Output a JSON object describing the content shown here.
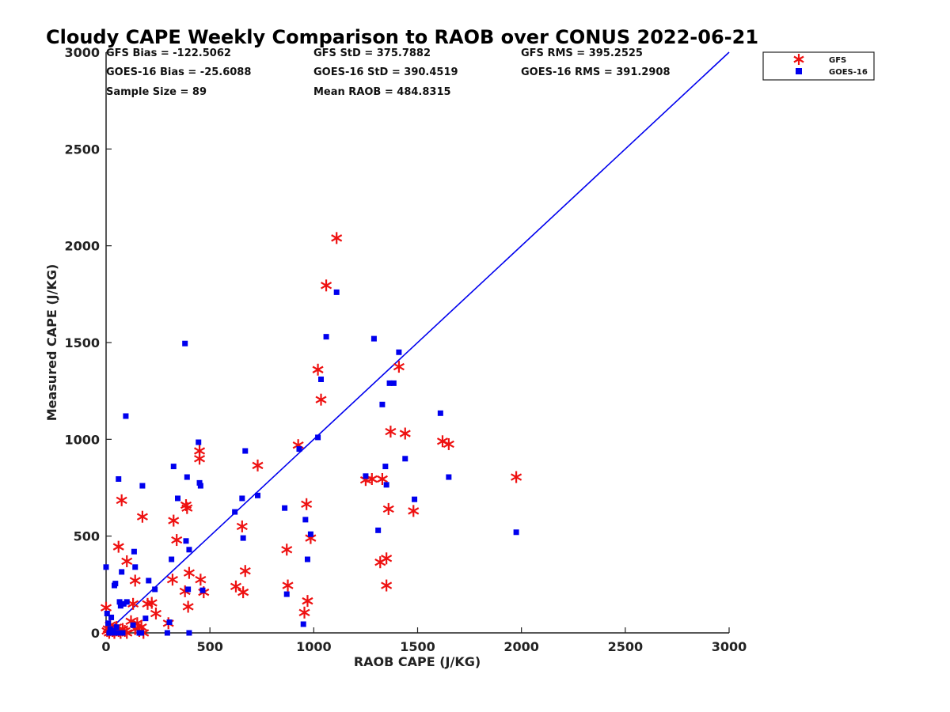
{
  "colors": {
    "gfs": "#ee1111",
    "goes": "#0000ee",
    "line": "#0000ee",
    "axis": "#222222"
  },
  "stats": [
    "GFS Bias = -122.5062",
    "GFS StD = 375.7882",
    "GFS RMS = 395.2525",
    "GOES-16 Bias = -25.6088",
    "GOES-16 StD = 390.4519",
    "GOES-16 RMS = 391.2908",
    "Sample Size = 89",
    "Mean RAOB = 484.8315"
  ],
  "chart_data": {
    "type": "scatter",
    "title": "Cloudy CAPE Weekly Comparison to RAOB over CONUS 2022-06-21",
    "xlabel": "RAOB CAPE (J/KG)",
    "ylabel": "Measured CAPE (J/KG)",
    "xlim": [
      0,
      3000
    ],
    "ylim": [
      0,
      3000
    ],
    "xticks": [
      "0",
      "500",
      "1000",
      "1500",
      "2000",
      "2500",
      "3000"
    ],
    "yticks": [
      "0",
      "500",
      "1000",
      "1500",
      "2000",
      "2500",
      "3000"
    ],
    "legend_position": "top-right",
    "reference_line": {
      "from": [
        0,
        0
      ],
      "to": [
        3000,
        3000
      ]
    },
    "series": [
      {
        "name": "GFS",
        "marker": "asterisk",
        "points": [
          [
            0,
            130
          ],
          [
            5,
            10
          ],
          [
            10,
            20
          ],
          [
            15,
            0
          ],
          [
            20,
            40
          ],
          [
            30,
            10
          ],
          [
            40,
            0
          ],
          [
            50,
            30
          ],
          [
            60,
            10
          ],
          [
            70,
            0
          ],
          [
            80,
            20
          ],
          [
            90,
            10
          ],
          [
            100,
            0
          ],
          [
            120,
            60
          ],
          [
            130,
            150
          ],
          [
            140,
            20
          ],
          [
            150,
            50
          ],
          [
            160,
            10
          ],
          [
            170,
            30
          ],
          [
            180,
            0
          ],
          [
            60,
            445
          ],
          [
            75,
            685
          ],
          [
            100,
            370
          ],
          [
            140,
            270
          ],
          [
            175,
            600
          ],
          [
            200,
            150
          ],
          [
            220,
            155
          ],
          [
            240,
            100
          ],
          [
            300,
            50
          ],
          [
            320,
            275
          ],
          [
            325,
            580
          ],
          [
            340,
            480
          ],
          [
            380,
            215
          ],
          [
            385,
            660
          ],
          [
            390,
            645
          ],
          [
            395,
            135
          ],
          [
            400,
            310
          ],
          [
            450,
            940
          ],
          [
            450,
            900
          ],
          [
            455,
            275
          ],
          [
            470,
            210
          ],
          [
            625,
            240
          ],
          [
            655,
            550
          ],
          [
            660,
            210
          ],
          [
            670,
            320
          ],
          [
            730,
            865
          ],
          [
            870,
            430
          ],
          [
            875,
            245
          ],
          [
            925,
            970
          ],
          [
            955,
            105
          ],
          [
            965,
            665
          ],
          [
            970,
            165
          ],
          [
            985,
            490
          ],
          [
            1020,
            1360
          ],
          [
            1035,
            1205
          ],
          [
            1060,
            1795
          ],
          [
            1110,
            2040
          ],
          [
            1250,
            790
          ],
          [
            1280,
            795
          ],
          [
            1320,
            365
          ],
          [
            1330,
            795
          ],
          [
            1350,
            245
          ],
          [
            1350,
            385
          ],
          [
            1360,
            640
          ],
          [
            1370,
            1040
          ],
          [
            1410,
            1375
          ],
          [
            1440,
            1030
          ],
          [
            1480,
            630
          ],
          [
            1620,
            990
          ],
          [
            1650,
            975
          ],
          [
            1975,
            805
          ]
        ]
      },
      {
        "name": "GOES-16",
        "marker": "square",
        "points": [
          [
            0,
            340
          ],
          [
            5,
            100
          ],
          [
            10,
            50
          ],
          [
            15,
            0
          ],
          [
            20,
            20
          ],
          [
            25,
            80
          ],
          [
            30,
            0
          ],
          [
            35,
            10
          ],
          [
            40,
            245
          ],
          [
            45,
            255
          ],
          [
            50,
            30
          ],
          [
            55,
            0
          ],
          [
            60,
            795
          ],
          [
            65,
            160
          ],
          [
            70,
            140
          ],
          [
            75,
            315
          ],
          [
            80,
            0
          ],
          [
            85,
            150
          ],
          [
            95,
            1120
          ],
          [
            100,
            160
          ],
          [
            130,
            40
          ],
          [
            135,
            420
          ],
          [
            140,
            340
          ],
          [
            160,
            0
          ],
          [
            170,
            0
          ],
          [
            175,
            760
          ],
          [
            190,
            75
          ],
          [
            205,
            270
          ],
          [
            235,
            225
          ],
          [
            295,
            0
          ],
          [
            305,
            55
          ],
          [
            315,
            380
          ],
          [
            325,
            860
          ],
          [
            345,
            695
          ],
          [
            380,
            1495
          ],
          [
            385,
            475
          ],
          [
            390,
            805
          ],
          [
            395,
            225
          ],
          [
            400,
            0
          ],
          [
            400,
            430
          ],
          [
            445,
            985
          ],
          [
            450,
            775
          ],
          [
            455,
            760
          ],
          [
            465,
            220
          ],
          [
            620,
            625
          ],
          [
            655,
            695
          ],
          [
            660,
            490
          ],
          [
            670,
            940
          ],
          [
            730,
            710
          ],
          [
            860,
            645
          ],
          [
            870,
            200
          ],
          [
            930,
            950
          ],
          [
            950,
            45
          ],
          [
            960,
            585
          ],
          [
            970,
            380
          ],
          [
            985,
            510
          ],
          [
            1020,
            1010
          ],
          [
            1035,
            1310
          ],
          [
            1060,
            1530
          ],
          [
            1110,
            1760
          ],
          [
            1250,
            810
          ],
          [
            1290,
            1520
          ],
          [
            1310,
            530
          ],
          [
            1330,
            1180
          ],
          [
            1345,
            860
          ],
          [
            1350,
            765
          ],
          [
            1365,
            1290
          ],
          [
            1385,
            1290
          ],
          [
            1410,
            1450
          ],
          [
            1440,
            900
          ],
          [
            1485,
            690
          ],
          [
            1610,
            1135
          ],
          [
            1650,
            805
          ],
          [
            1975,
            520
          ]
        ]
      }
    ]
  }
}
